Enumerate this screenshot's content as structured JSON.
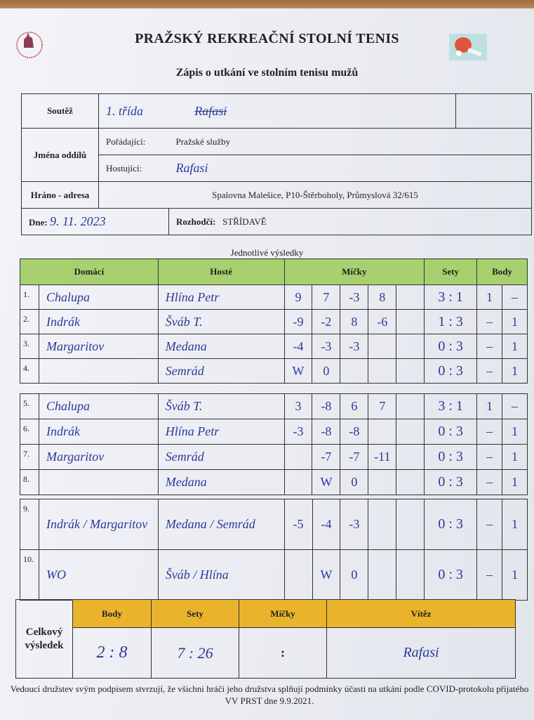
{
  "title": "PRAŽSKÝ REKREAČNÍ STOLNÍ TENIS",
  "subtitle": "Zápis o utkání ve stolním tenisu mužů",
  "logo_text": "PRAŽSKÝ REKREAČNÍ STOLNÍ TENIS",
  "info": {
    "soutez_label": "Soutěž",
    "soutez_value": "1. třída",
    "soutez_handwritten": "Rafasi",
    "jmena_label": "Jména oddílů",
    "poradajici_label": "Pořádající:",
    "poradajici_value": "Pražské služby",
    "hostujici_label": "Hostující:",
    "hostujici_value": "Rafasi",
    "hrano_label": "Hráno - adresa",
    "hrano_value": "Spalovna Malešice, P10-Štěrboholy, Průmyslová 32/615",
    "dne_label": "Dne:",
    "dne_value": "9. 11. 2023",
    "rozhodci_label": "Rozhodčí:",
    "rozhodci_value": "STŘÍDAVĚ"
  },
  "results": {
    "section_title": "Jednotlivé výsledky",
    "headers": {
      "domaci": "Domácí",
      "hoste": "Hosté",
      "micky": "Míčky",
      "sety": "Sety",
      "body": "Body"
    },
    "groups": [
      [
        {
          "n": "1.",
          "home": "Chalupa",
          "guest": "Hlína Petr",
          "balls": [
            "9",
            "7",
            "-3",
            "8",
            ""
          ],
          "sets": "3 : 1",
          "bh": "1",
          "bg": "–"
        },
        {
          "n": "2.",
          "home": "Indrák",
          "guest": "Šváb T.",
          "balls": [
            "-9",
            "-2",
            "8",
            "-6",
            ""
          ],
          "sets": "1 : 3",
          "bh": "–",
          "bg": "1"
        },
        {
          "n": "3.",
          "home": "Margaritov",
          "guest": "Medana",
          "balls": [
            "-4",
            "-3",
            "-3",
            "",
            ""
          ],
          "sets": "0 : 3",
          "bh": "–",
          "bg": "1"
        },
        {
          "n": "4.",
          "home": "",
          "guest": "Semrád",
          "balls": [
            "W",
            "0",
            "",
            "",
            ""
          ],
          "sets": "0 : 3",
          "bh": "–",
          "bg": "1"
        }
      ],
      [
        {
          "n": "5.",
          "home": "Chalupa",
          "guest": "Šváb T.",
          "balls": [
            "3",
            "-8",
            "6",
            "7",
            ""
          ],
          "sets": "3 : 1",
          "bh": "1",
          "bg": "–"
        },
        {
          "n": "6.",
          "home": "Indrák",
          "guest": "Hlína Petr",
          "balls": [
            "-3",
            "-8",
            "-8",
            "",
            ""
          ],
          "sets": "0 : 3",
          "bh": "–",
          "bg": "1"
        },
        {
          "n": "7.",
          "home": "Margaritov",
          "guest": "Semrád",
          "balls": [
            "",
            "-7",
            "-7",
            "-11",
            ""
          ],
          "sets": "0 : 3",
          "bh": "–",
          "bg": "1"
        },
        {
          "n": "8.",
          "home": "",
          "guest": "Medana",
          "balls": [
            "",
            "W",
            "0",
            "",
            ""
          ],
          "sets": "0 : 3",
          "bh": "–",
          "bg": "1"
        }
      ],
      [
        {
          "n": "9.",
          "home": "Indrák / Margaritov",
          "guest": "Medana / Semrád",
          "balls": [
            "-5",
            "-4",
            "-3",
            "",
            ""
          ],
          "sets": "0 : 3",
          "bh": "–",
          "bg": "1"
        },
        {
          "n": "10.",
          "home": "WO",
          "guest": "Šváb / Hlína",
          "balls": [
            "",
            "W",
            "0",
            "",
            ""
          ],
          "sets": "0 : 3",
          "bh": "–",
          "bg": "1"
        }
      ]
    ]
  },
  "total": {
    "label": "Celkový výsledek",
    "body_label": "Body",
    "sety_label": "Sety",
    "micky_label": "Míčky",
    "vitez_label": "Vítěz",
    "body": "2 : 8",
    "sety": "7 : 26",
    "micky": ":",
    "vitez": "Rafasi"
  },
  "footer": "Vedoucí družstev svým podpisem stvrzují, že všichni hráči jeho družstva splňují podmínky účasti na utkání podle COVID-protokolu přijatého VV PRST dne 9.9.2021.",
  "colors": {
    "header_green": "#a9d06f",
    "header_yellow": "#e9b42b",
    "ink": "#2b3a97"
  }
}
